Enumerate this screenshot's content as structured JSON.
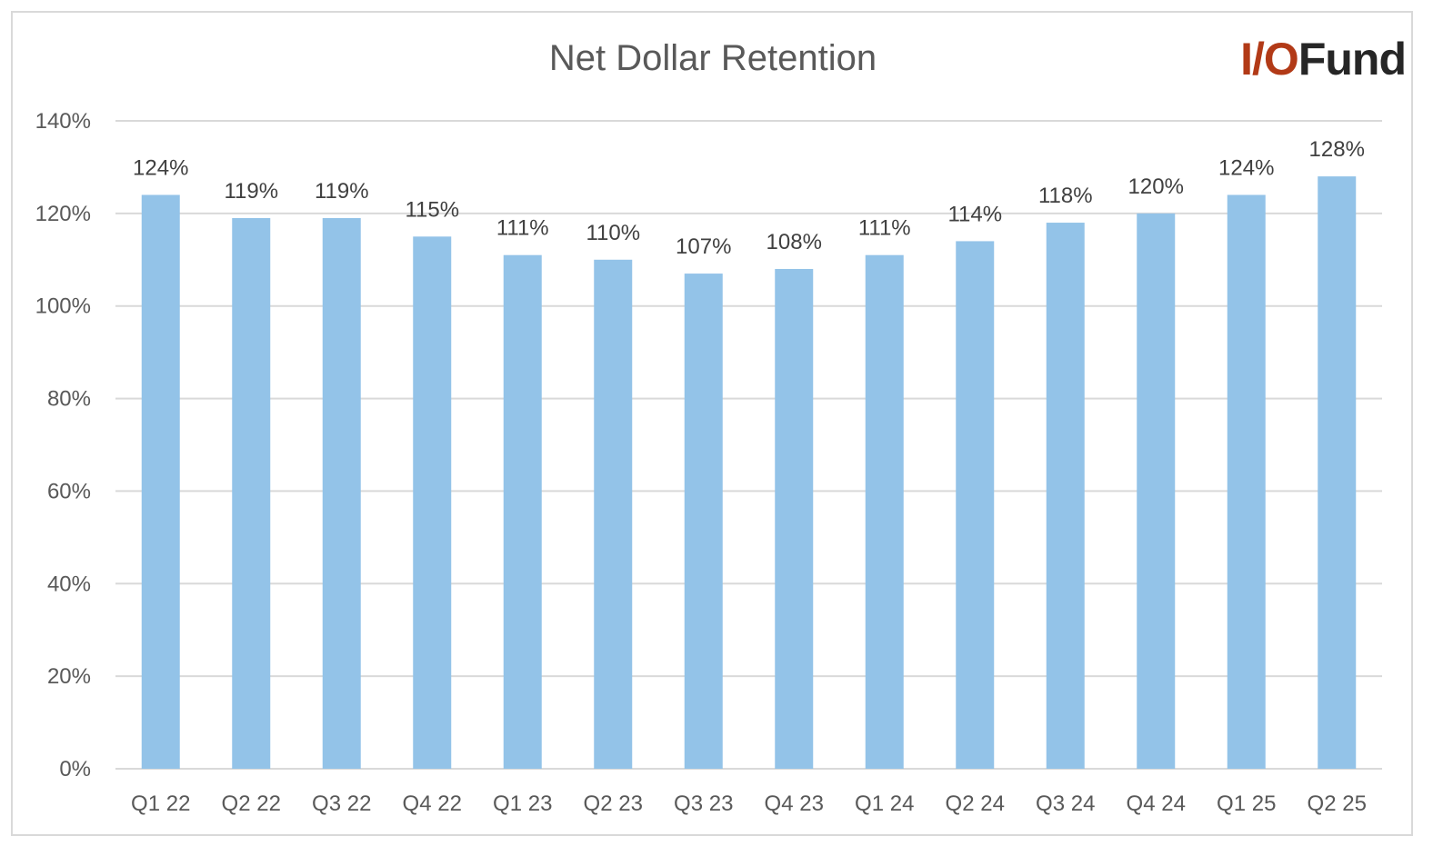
{
  "logo": {
    "accent_text": "I/O",
    "main_text": "Fund",
    "accent_color": "#b23a17",
    "main_color": "#262626"
  },
  "chart_data": {
    "type": "bar",
    "title": "Net Dollar Retention",
    "xlabel": "",
    "ylabel": "",
    "categories": [
      "Q1 22",
      "Q2 22",
      "Q3 22",
      "Q4 22",
      "Q1 23",
      "Q2 23",
      "Q3 23",
      "Q4 23",
      "Q1 24",
      "Q2 24",
      "Q3 24",
      "Q4 24",
      "Q1 25",
      "Q2 25"
    ],
    "values": [
      124,
      119,
      119,
      115,
      111,
      110,
      107,
      108,
      111,
      114,
      118,
      120,
      124,
      128
    ],
    "data_labels": [
      "124%",
      "119%",
      "119%",
      "115%",
      "111%",
      "110%",
      "107%",
      "108%",
      "111%",
      "114%",
      "118%",
      "120%",
      "124%",
      "128%"
    ],
    "ylim": [
      0,
      140
    ],
    "y_ticks": [
      0,
      20,
      40,
      60,
      80,
      100,
      120,
      140
    ],
    "y_tick_labels": [
      "0%",
      "20%",
      "40%",
      "60%",
      "80%",
      "100%",
      "120%",
      "140%"
    ],
    "grid": true,
    "legend": "none",
    "bar_color": "#93c3e8",
    "grid_color": "#d9d9d9"
  }
}
